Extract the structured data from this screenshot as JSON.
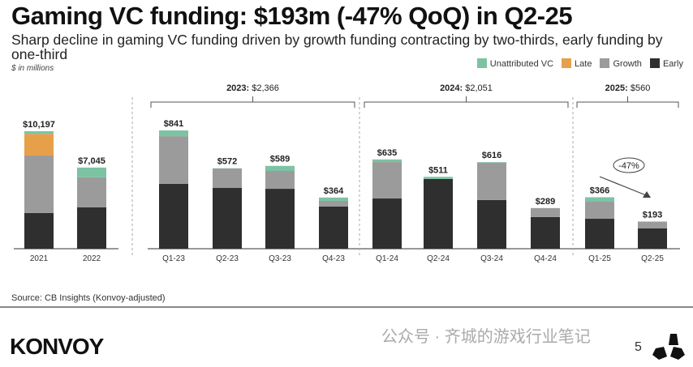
{
  "title": "Gaming VC funding: $193m (-47% QoQ) in Q2-25",
  "subtitle": "Sharp decline in gaming VC funding driven by growth funding contracting by two-thirds, early funding by one-third",
  "unit": "$ in millions",
  "source": "Source: CB Insights (Konvoy-adjusted)",
  "logo": "KONVOY",
  "watermark": "公众号 · 齐城的游戏行业笔记",
  "page_number": "5",
  "colors": {
    "Unattributed VC": "#7cc3a4",
    "Late": "#e6a04a",
    "Growth": "#9b9b9b",
    "Early": "#2f2f2f"
  },
  "chart_data": {
    "type": "bar",
    "stacked": true,
    "legend": [
      "Unattributed VC",
      "Late",
      "Growth",
      "Early"
    ],
    "legend_position": "top-right",
    "groups": [
      {
        "label": "",
        "categories": [
          "2021",
          "2022"
        ],
        "totals_label": [
          "$10,197",
          "$7,045"
        ],
        "series": {
          "Early": [
            3100,
            3590
          ],
          "Growth": [
            4990,
            2610
          ],
          "Late": [
            1870,
            0
          ],
          "Unattributed VC": [
            237,
            845
          ]
        }
      },
      {
        "label_bold": "2023:",
        "label_value": "$2,366",
        "categories": [
          "Q1-23",
          "Q2-23",
          "Q3-23",
          "Q4-23"
        ],
        "totals_label": [
          "$841",
          "$572",
          "$589",
          "$364"
        ],
        "series": {
          "Early": [
            461,
            432,
            426,
            300
          ],
          "Growth": [
            339,
            138,
            127,
            40
          ],
          "Late": [
            0,
            0,
            0,
            0
          ],
          "Unattributed VC": [
            41,
            2,
            36,
            24
          ]
        }
      },
      {
        "label_bold": "2024:",
        "label_value": "$2,051",
        "categories": [
          "Q1-24",
          "Q2-24",
          "Q3-24",
          "Q4-24"
        ],
        "totals_label": [
          "$635",
          "$511",
          "$616",
          "$289"
        ],
        "series": {
          "Early": [
            357,
            496,
            346,
            225
          ],
          "Growth": [
            259,
            0,
            266,
            64
          ],
          "Late": [
            0,
            0,
            0,
            0
          ],
          "Unattributed VC": [
            19,
            15,
            4,
            0
          ]
        }
      },
      {
        "label_bold": "2025:",
        "label_value": "$560",
        "categories": [
          "Q1-25",
          "Q2-25"
        ],
        "totals_label": [
          "$366",
          "$193"
        ],
        "series": {
          "Early": [
            213,
            144
          ],
          "Growth": [
            121,
            49
          ],
          "Late": [
            0,
            0
          ],
          "Unattributed VC": [
            32,
            0
          ]
        }
      }
    ],
    "annotation": "-47%"
  }
}
